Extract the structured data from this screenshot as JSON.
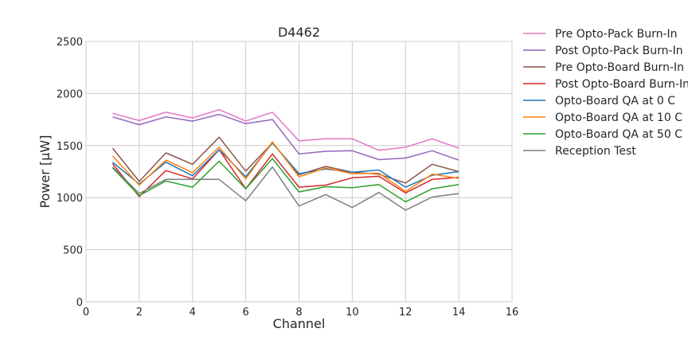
{
  "chart_data": {
    "type": "line",
    "title": "D4462",
    "xlabel": "Channel",
    "ylabel": "Power [μW]",
    "xlim": [
      0,
      16
    ],
    "ylim": [
      0,
      2500
    ],
    "xticks": [
      0,
      2,
      4,
      6,
      8,
      10,
      12,
      14,
      16
    ],
    "yticks": [
      0,
      500,
      1000,
      1500,
      2000,
      2500
    ],
    "grid": true,
    "legend_position": "outside-right",
    "x": [
      1,
      2,
      3,
      4,
      5,
      6,
      7,
      8,
      9,
      10,
      11,
      12,
      13,
      14
    ],
    "series": [
      {
        "name": "Pre Opto-Pack Burn-In",
        "color": "#e377c2",
        "values": [
          1810,
          1740,
          1820,
          1765,
          1845,
          1735,
          1820,
          1545,
          1565,
          1565,
          1455,
          1485,
          1565,
          1475
        ]
      },
      {
        "name": "Post Opto-Pack Burn-In",
        "color": "#9467bd",
        "values": [
          1775,
          1700,
          1775,
          1735,
          1800,
          1710,
          1750,
          1420,
          1445,
          1450,
          1365,
          1380,
          1450,
          1360
        ]
      },
      {
        "name": "Pre Opto-Board Burn-In",
        "color": "#8c564b",
        "values": [
          1475,
          1155,
          1430,
          1320,
          1580,
          1255,
          1525,
          1220,
          1300,
          1245,
          1225,
          1140,
          1320,
          1250
        ]
      },
      {
        "name": "Post Opto-Board Burn-In",
        "color": "#d62728",
        "values": [
          1325,
          1010,
          1260,
          1180,
          1460,
          1085,
          1420,
          1100,
          1120,
          1190,
          1205,
          1045,
          1175,
          1195
        ]
      },
      {
        "name": "Opto-Board QA at 0 C",
        "color": "#1f77b4",
        "values": [
          1340,
          1130,
          1340,
          1210,
          1460,
          1200,
          1525,
          1230,
          1275,
          1245,
          1265,
          1100,
          1215,
          1250
        ]
      },
      {
        "name": "Opto-Board QA at 10 C",
        "color": "#ff7f0e",
        "values": [
          1400,
          1120,
          1360,
          1240,
          1485,
          1180,
          1535,
          1200,
          1285,
          1230,
          1235,
          1060,
          1225,
          1185
        ]
      },
      {
        "name": "Opto-Board QA at 50 C",
        "color": "#2ca02c",
        "values": [
          1285,
          1020,
          1160,
          1100,
          1350,
          1085,
          1375,
          1055,
          1105,
          1095,
          1125,
          960,
          1085,
          1125
        ]
      },
      {
        "name": "Reception Test",
        "color": "#7f7f7f",
        "values": [
          1295,
          1040,
          1175,
          1175,
          1175,
          970,
          1295,
          920,
          1030,
          905,
          1050,
          880,
          1005,
          1040
        ]
      }
    ]
  }
}
